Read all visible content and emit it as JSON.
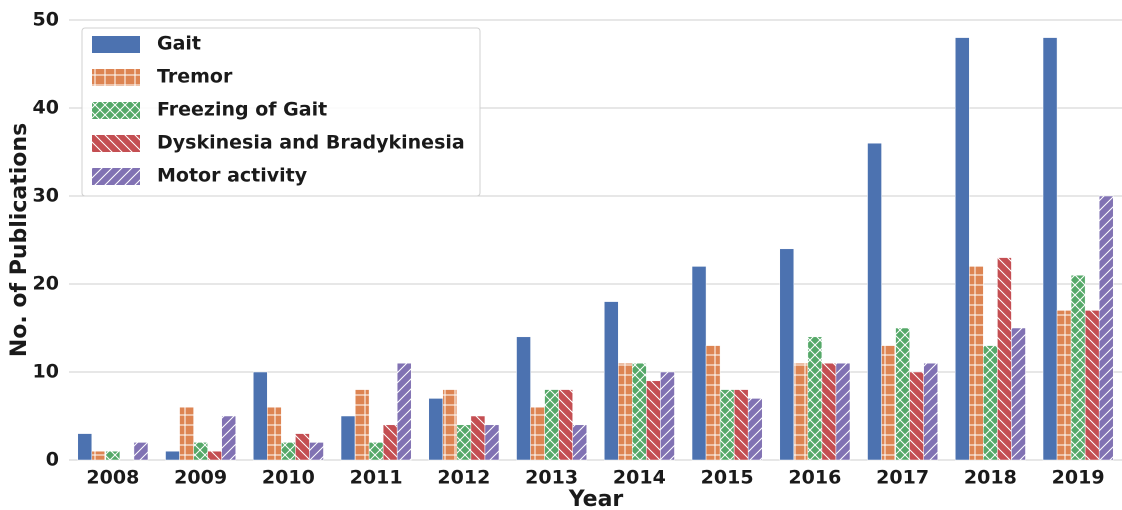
{
  "chart_data": {
    "type": "bar",
    "x_label": "Year",
    "y_label": "No. of Publications",
    "categories": [
      "2008",
      "2009",
      "2010",
      "2011",
      "2012",
      "2013",
      "2014",
      "2015",
      "2016",
      "2017",
      "2018",
      "2019"
    ],
    "series": [
      {
        "name": "Gait",
        "color": "#4c72b0",
        "values": [
          3,
          1,
          10,
          5,
          7,
          14,
          18,
          22,
          24,
          36,
          48,
          48
        ]
      },
      {
        "name": "Tremor",
        "color": "#dd8452",
        "hatch": "+",
        "values": [
          1,
          6,
          6,
          8,
          8,
          6,
          11,
          13,
          11,
          13,
          22,
          17
        ]
      },
      {
        "name": "Freezing of Gait",
        "color": "#55a868",
        "hatch": "x",
        "values": [
          1,
          2,
          2,
          2,
          4,
          8,
          11,
          8,
          14,
          15,
          13,
          21
        ]
      },
      {
        "name": "Dyskinesia and Bradykinesia",
        "color": "#c44e52",
        "hatch": "\\",
        "values": [
          0,
          1,
          3,
          4,
          5,
          8,
          9,
          8,
          11,
          10,
          23,
          17
        ]
      },
      {
        "name": "Motor activity",
        "color": "#8172b3",
        "hatch": "/",
        "values": [
          2,
          5,
          2,
          11,
          4,
          4,
          10,
          7,
          11,
          11,
          15,
          30
        ]
      }
    ],
    "ylim": [
      0,
      50
    ],
    "yticks": [
      0,
      10,
      20,
      30,
      40,
      50
    ],
    "grid": true,
    "legend": "upper left"
  }
}
